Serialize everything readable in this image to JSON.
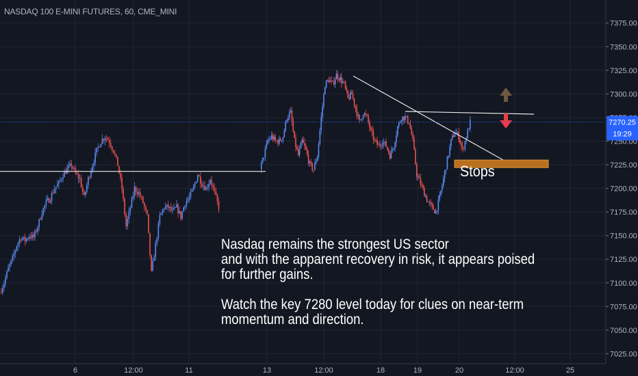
{
  "chart_data": {
    "type": "candlestick",
    "title": "NASDAQ 100 E-MINI FUTURES, 60, CME_MINI",
    "y_axis": {
      "position": "right",
      "range": [
        7015,
        7385
      ],
      "ticks": [
        "7025.00",
        "7050.00",
        "7075.00",
        "7100.00",
        "7125.00",
        "7150.00",
        "7175.00",
        "7200.00",
        "7225.00",
        "7250.00",
        "7275.00",
        "7300.00",
        "7325.00",
        "7350.00",
        "7375.00"
      ]
    },
    "x_axis": {
      "ticks": [
        "6",
        "12:00",
        "11",
        "13",
        "12:00",
        "18",
        "19",
        "20",
        "12:00",
        "25"
      ]
    },
    "last_price": {
      "value": 7270.25,
      "label": "7270.25",
      "countdown": "19:29"
    },
    "price_path": [
      [
        7090,
        7100,
        7115,
        7125,
        7140,
        7148,
        7145,
        7150,
        7148,
        7160,
        7175,
        7185,
        7190,
        7200,
        7205,
        7215,
        7220,
        7225,
        7215,
        7210,
        7190,
        7210,
        7225,
        7240,
        7250,
        7255,
        7250,
        7240,
        7225,
        7200,
        7160,
        7180,
        7200,
        7195,
        7185,
        7170,
        7110,
        7140,
        7170,
        7180,
        7180,
        7175,
        7180,
        7170,
        7185,
        7190,
        7200,
        7215,
        7205,
        7200,
        7210,
        7195,
        7180
      ],
      [
        7220,
        7235,
        7250,
        7255,
        7250,
        7250,
        7255,
        7275,
        7280,
        7250,
        7235,
        7250,
        7240,
        7225,
        7220,
        7235,
        7275,
        7310,
        7315,
        7310,
        7320,
        7316,
        7310,
        7295,
        7300,
        7285,
        7270,
        7280,
        7275,
        7260,
        7250,
        7245,
        7250,
        7245,
        7235,
        7245,
        7265,
        7275,
        7275,
        7270,
        7250,
        7215,
        7205,
        7195,
        7185,
        7180,
        7175,
        7190,
        7210,
        7230,
        7250,
        7260,
        7255,
        7240,
        7255,
        7270
      ]
    ],
    "annotations": {
      "horizontal_line": 7218,
      "resistance_line": 7280,
      "trend_line": [
        7319,
        7226
      ],
      "stops_zone": [
        7222,
        7230
      ],
      "stops_label": "Stops"
    },
    "colors": {
      "up": "#5b8cf5",
      "down": "#ef5350",
      "background": "#131722",
      "grid": "#1f2433",
      "stops_zone": "#b8701e",
      "arrow_up": "#6b5a40",
      "arrow_down": "#ef3b45",
      "price_tag": "#2962ff"
    },
    "note": [
      "Nasdaq remains the strongest US sector",
      "and with the apparent recovery in risk, it appears poised",
      "for further gains.",
      "Watch the key 7280 level today for clues on near-term",
      "momentum and direction."
    ]
  }
}
